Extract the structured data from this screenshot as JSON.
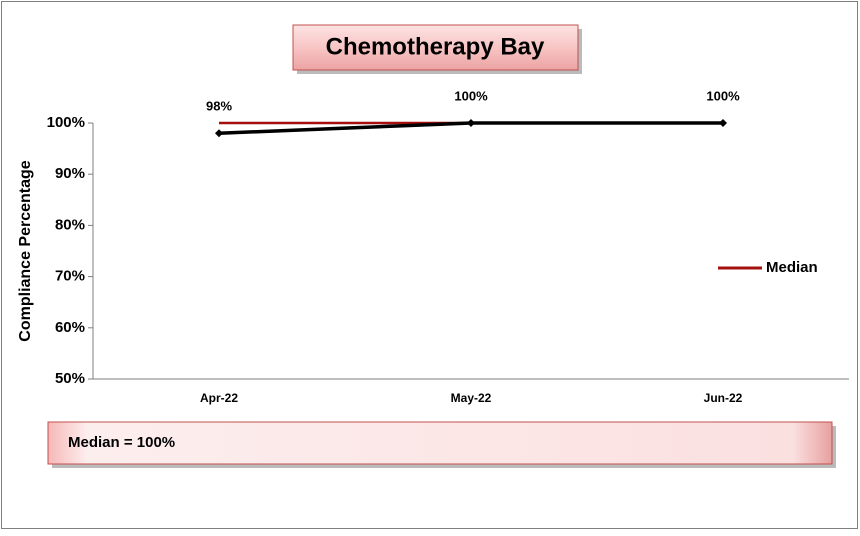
{
  "chart_data": {
    "type": "line",
    "title": "Chemotherapy Bay",
    "y_label": "Compliance Percentage",
    "categories": [
      "Apr-22",
      "May-22",
      "Jun-22"
    ],
    "series": [
      {
        "color": "#000000",
        "values": [
          98,
          100,
          100
        ],
        "value_labels": [
          "98%",
          "100%",
          "100%"
        ],
        "marker": "diamond"
      },
      {
        "name": "Median",
        "color": "#a50f0f",
        "values": [
          100,
          100,
          100
        ]
      }
    ],
    "ylim": [
      50,
      100
    ],
    "yticks": [
      {
        "value": 50,
        "label": "50%"
      },
      {
        "value": 60,
        "label": "60%"
      },
      {
        "value": 70,
        "label": "70%"
      },
      {
        "value": 80,
        "label": "80%"
      },
      {
        "value": 90,
        "label": "90%"
      },
      {
        "value": 100,
        "label": "100%"
      }
    ],
    "grid": false,
    "legend": "right",
    "annotation": "Median = 100%"
  }
}
